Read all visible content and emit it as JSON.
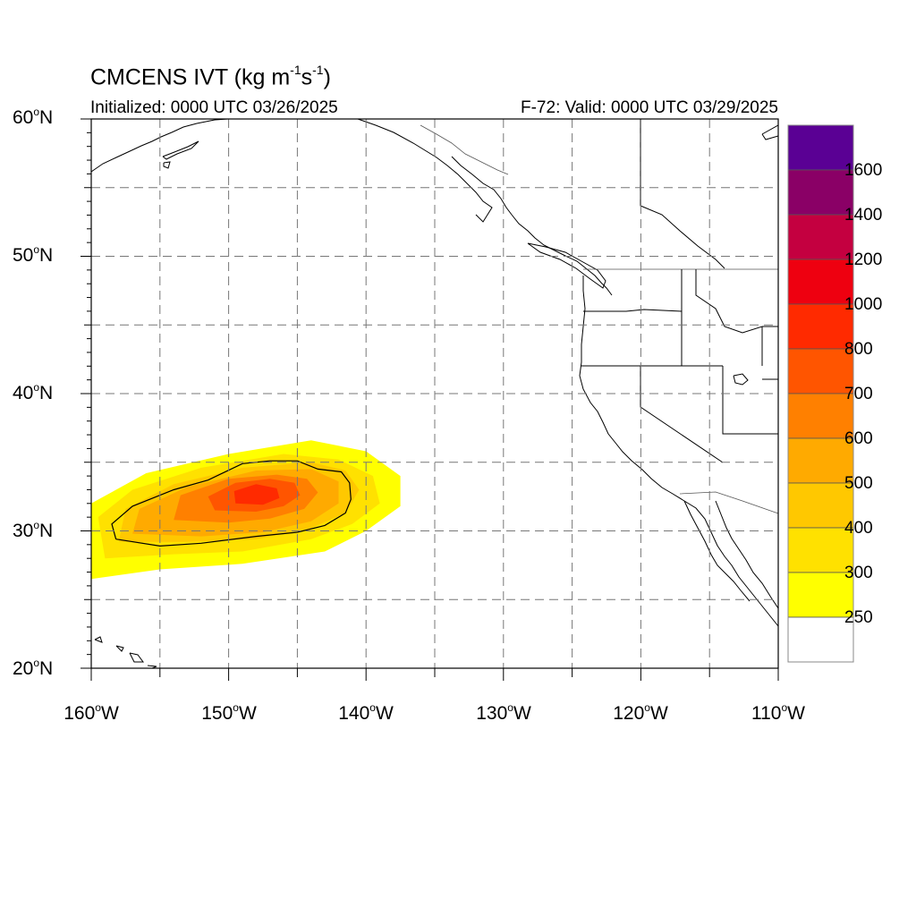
{
  "title": {
    "model": "CMCENS IVT (kg m",
    "exp1": "-1",
    "mid": "s",
    "exp2": "-1",
    "close": ")"
  },
  "init_text": "Initialized: 0000 UTC 03/26/2025",
  "valid_text": "F-72: Valid: 0000 UTC 03/29/2025",
  "degree_symbol": "o",
  "lat_labels": [
    {
      "num": "60",
      "hemi": "N"
    },
    {
      "num": "50",
      "hemi": "N"
    },
    {
      "num": "40",
      "hemi": "N"
    },
    {
      "num": "30",
      "hemi": "N"
    },
    {
      "num": "20",
      "hemi": "N"
    }
  ],
  "lon_labels": [
    {
      "num": "160",
      "hemi": "W"
    },
    {
      "num": "150",
      "hemi": "W"
    },
    {
      "num": "140",
      "hemi": "W"
    },
    {
      "num": "130",
      "hemi": "W"
    },
    {
      "num": "120",
      "hemi": "W"
    },
    {
      "num": "110",
      "hemi": "W"
    }
  ],
  "colorbar": {
    "labels": [
      "1600",
      "1400",
      "1200",
      "1000",
      "800",
      "700",
      "600",
      "500",
      "400",
      "300",
      "250"
    ],
    "colors_bottom_to_top": [
      "#ffffff",
      "#ffff00",
      "#ffe100",
      "#ffc800",
      "#ffaa00",
      "#ff8000",
      "#ff5500",
      "#ff2a00",
      "#ee0010",
      "#c40040",
      "#8a0066",
      "#5a0094"
    ]
  },
  "map_extent": {
    "lon_min": -160,
    "lon_max": -110,
    "lat_min": 20,
    "lat_max": 60
  },
  "ivt_field": {
    "description_free": true,
    "levels": [
      250,
      300,
      400,
      500,
      600,
      700,
      800
    ],
    "blob": [
      {
        "level": 250,
        "outline": [
          [
            -160,
            26.5
          ],
          [
            -155,
            27.2
          ],
          [
            -149,
            27.6
          ],
          [
            -143,
            28.5
          ],
          [
            -140,
            30.0
          ],
          [
            -137.5,
            31.8
          ],
          [
            -137.5,
            34.0
          ],
          [
            -140,
            35.8
          ],
          [
            -144,
            36.6
          ],
          [
            -150,
            35.6
          ],
          [
            -156,
            34.2
          ],
          [
            -160,
            32.0
          ]
        ]
      },
      {
        "level": 300,
        "outline": [
          [
            -159,
            28.0
          ],
          [
            -154,
            28.3
          ],
          [
            -149,
            28.5
          ],
          [
            -144,
            29.4
          ],
          [
            -141,
            30.5
          ],
          [
            -139,
            32.0
          ],
          [
            -139.5,
            34.0
          ],
          [
            -142,
            35.2
          ],
          [
            -146,
            35.6
          ],
          [
            -152,
            34.6
          ],
          [
            -157,
            33.0
          ],
          [
            -159.5,
            31.0
          ]
        ]
      },
      {
        "level": 400,
        "outline": [
          [
            -158,
            29.2
          ],
          [
            -153,
            29.2
          ],
          [
            -148,
            29.4
          ],
          [
            -144,
            30.2
          ],
          [
            -141.5,
            31.3
          ],
          [
            -140.5,
            33.0
          ],
          [
            -141.5,
            34.4
          ],
          [
            -144,
            35.0
          ],
          [
            -149,
            34.6
          ],
          [
            -154,
            33.4
          ],
          [
            -157.5,
            31.6
          ]
        ]
      },
      {
        "level": 500,
        "outline": [
          [
            -157,
            29.8
          ],
          [
            -152,
            29.6
          ],
          [
            -147.5,
            29.9
          ],
          [
            -144,
            30.7
          ],
          [
            -142,
            32.0
          ],
          [
            -142,
            33.6
          ],
          [
            -144,
            34.5
          ],
          [
            -148,
            34.4
          ],
          [
            -153,
            33.2
          ],
          [
            -156.5,
            31.6
          ]
        ]
      },
      {
        "level": 600,
        "outline": [
          [
            -154,
            30.8
          ],
          [
            -150,
            30.6
          ],
          [
            -147,
            30.9
          ],
          [
            -144.5,
            31.6
          ],
          [
            -143.5,
            32.8
          ],
          [
            -144.3,
            33.8
          ],
          [
            -146.5,
            34.1
          ],
          [
            -150,
            33.8
          ],
          [
            -153.5,
            32.6
          ]
        ]
      },
      {
        "level": 700,
        "outline": [
          [
            -151,
            31.5
          ],
          [
            -148,
            31.4
          ],
          [
            -146,
            31.8
          ],
          [
            -144.8,
            32.6
          ],
          [
            -145.2,
            33.5
          ],
          [
            -147,
            33.8
          ],
          [
            -149.5,
            33.5
          ],
          [
            -151.5,
            32.5
          ]
        ]
      },
      {
        "level": 800,
        "outline": [
          [
            -149.5,
            32.0
          ],
          [
            -147.5,
            31.9
          ],
          [
            -146.3,
            32.4
          ],
          [
            -146.5,
            33.1
          ],
          [
            -148,
            33.4
          ],
          [
            -149.6,
            32.9
          ]
        ]
      }
    ],
    "contour_250": [
      [
        -158.2,
        29.4
      ],
      [
        -155,
        28.9
      ],
      [
        -152,
        29.1
      ],
      [
        -148,
        29.6
      ],
      [
        -145,
        29.9
      ],
      [
        -143,
        30.4
      ],
      [
        -141.5,
        31.3
      ],
      [
        -141.1,
        32.3
      ],
      [
        -141.2,
        33.5
      ],
      [
        -141.8,
        34.3
      ],
      [
        -143.5,
        34.5
      ],
      [
        -145,
        35.1
      ],
      [
        -147,
        35.1
      ],
      [
        -149,
        34.9
      ],
      [
        -151.5,
        33.7
      ],
      [
        -154,
        33.0
      ],
      [
        -157,
        31.8
      ],
      [
        -158.5,
        30.5
      ],
      [
        -158.2,
        29.4
      ]
    ]
  }
}
